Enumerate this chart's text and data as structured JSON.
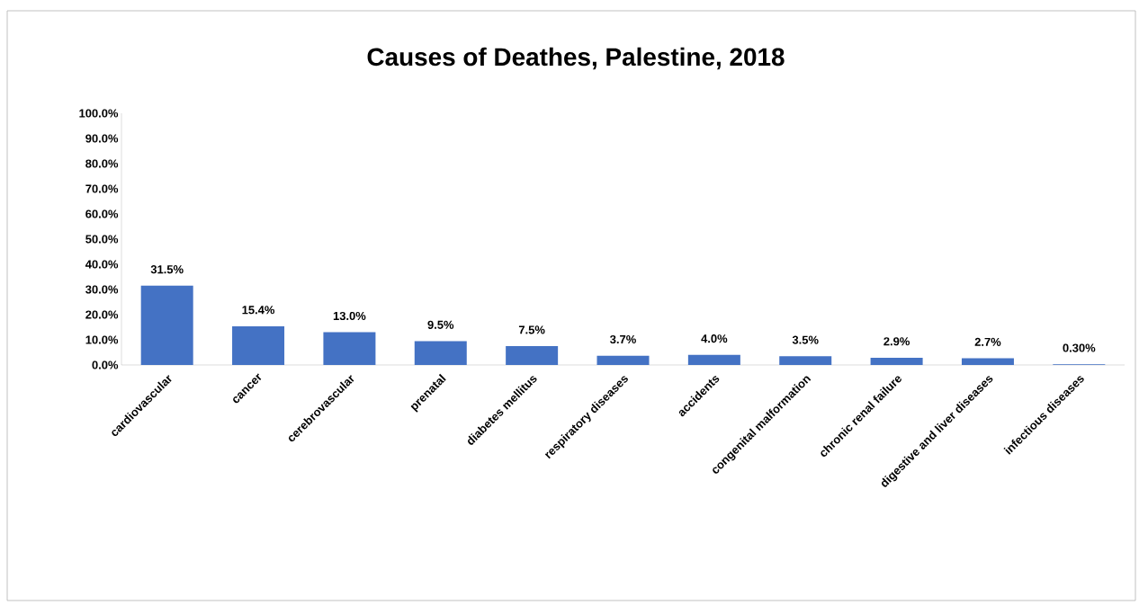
{
  "chart_data": {
    "type": "bar",
    "title": "Causes of Deathes, Palestine, 2018",
    "categories": [
      "cardiovascular",
      "cancer",
      "cerebrovascular",
      "prenatal",
      "diabetes mellitus",
      "respiratory diseases",
      "accidents",
      "congenital malformation",
      "chronic renal failure",
      "digestive and liver diseases",
      "infectious diseases"
    ],
    "values": [
      31.5,
      15.4,
      13.0,
      9.5,
      7.5,
      3.7,
      4.0,
      3.5,
      2.9,
      2.7,
      0.3
    ],
    "value_labels": [
      "31.5%",
      "15.4%",
      "13.0%",
      "9.5%",
      "7.5%",
      "3.7%",
      "4.0%",
      "3.5%",
      "2.9%",
      "2.7%",
      "0.30%"
    ],
    "color": "#4472c4",
    "ylim": [
      0,
      100
    ],
    "yticks": [
      {
        "value": 0,
        "label": "0.0%"
      },
      {
        "value": 10,
        "label": "10.0%"
      },
      {
        "value": 20,
        "label": "20.0%"
      },
      {
        "value": 30,
        "label": "30.0%"
      },
      {
        "value": 40,
        "label": "40.0%"
      },
      {
        "value": 50,
        "label": "50.0%"
      },
      {
        "value": 60,
        "label": "60.0%"
      },
      {
        "value": 70,
        "label": "70.0%"
      },
      {
        "value": 80,
        "label": "80.0%"
      },
      {
        "value": 90,
        "label": "90.0%"
      },
      {
        "value": 100,
        "label": "100.0%"
      }
    ],
    "grid": false
  }
}
